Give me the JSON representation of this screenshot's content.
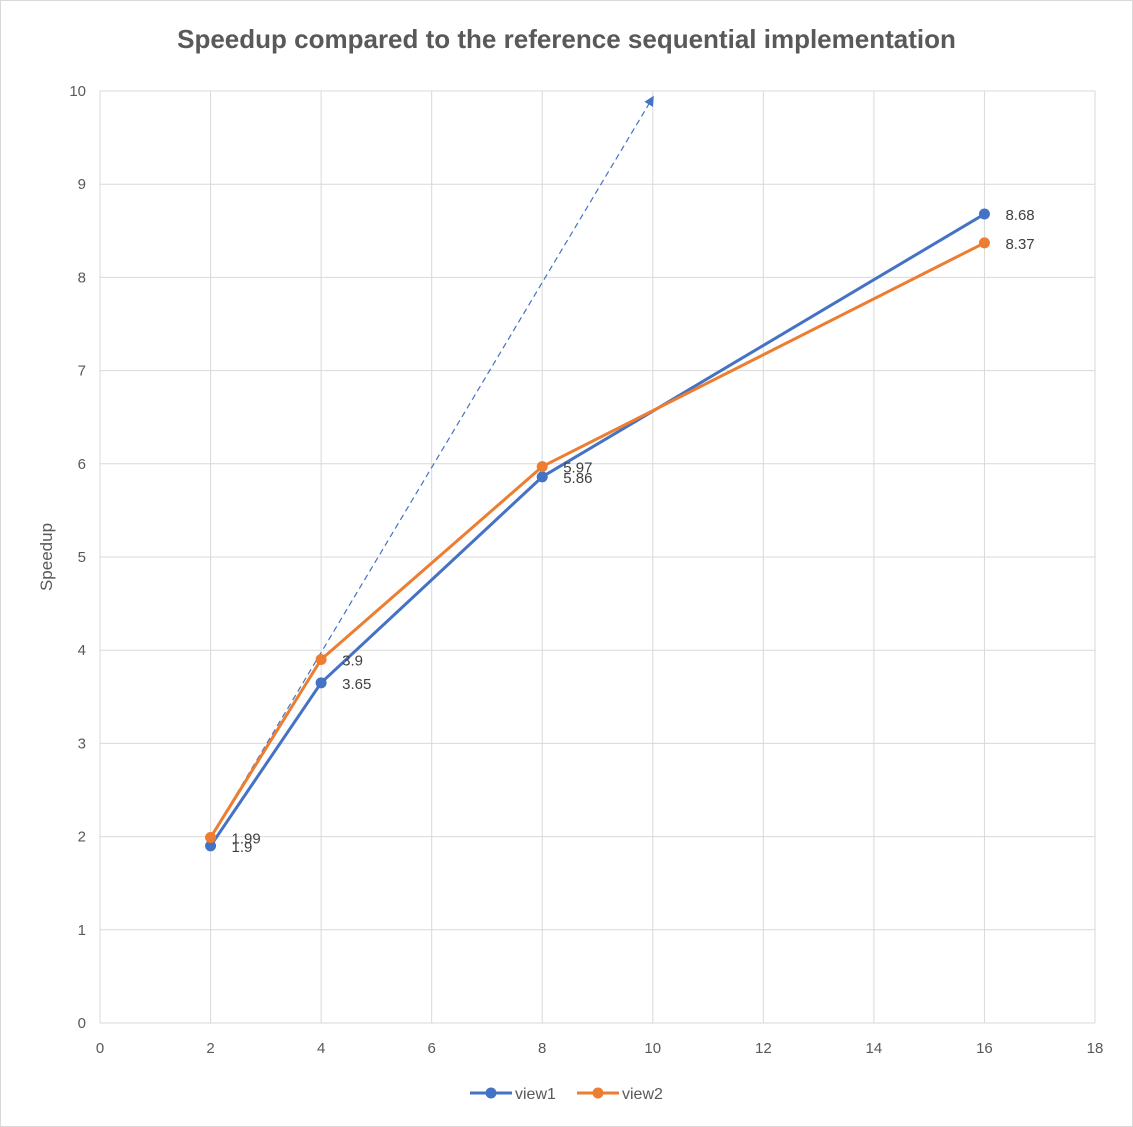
{
  "chart_data": {
    "type": "line",
    "title": "Speedup compared to the reference sequential implementation",
    "xlabel": "",
    "ylabel": "Speedup",
    "xlim": [
      0,
      18
    ],
    "ylim": [
      0,
      10
    ],
    "xticks": [
      0,
      2,
      4,
      6,
      8,
      10,
      12,
      14,
      16,
      18
    ],
    "yticks": [
      0,
      1,
      2,
      3,
      4,
      5,
      6,
      7,
      8,
      9,
      10
    ],
    "grid": true,
    "legend_position": "bottom",
    "x": [
      2,
      4,
      8,
      16
    ],
    "series": [
      {
        "name": "view1",
        "color": "#4472c4",
        "values": [
          1.9,
          3.65,
          5.86,
          8.68
        ],
        "labels": [
          "1.9",
          "3.65",
          "5.86",
          "8.68"
        ]
      },
      {
        "name": "view2",
        "color": "#ed7d31",
        "values": [
          1.99,
          3.9,
          5.97,
          8.37
        ],
        "labels": [
          "1.99",
          "3.9",
          "5.97",
          "8.37"
        ]
      }
    ],
    "annotations": [
      {
        "type": "dashed-arrow",
        "color": "#4472c4",
        "from": [
          2,
          1.99
        ],
        "to": [
          10,
          9.93
        ]
      }
    ]
  }
}
